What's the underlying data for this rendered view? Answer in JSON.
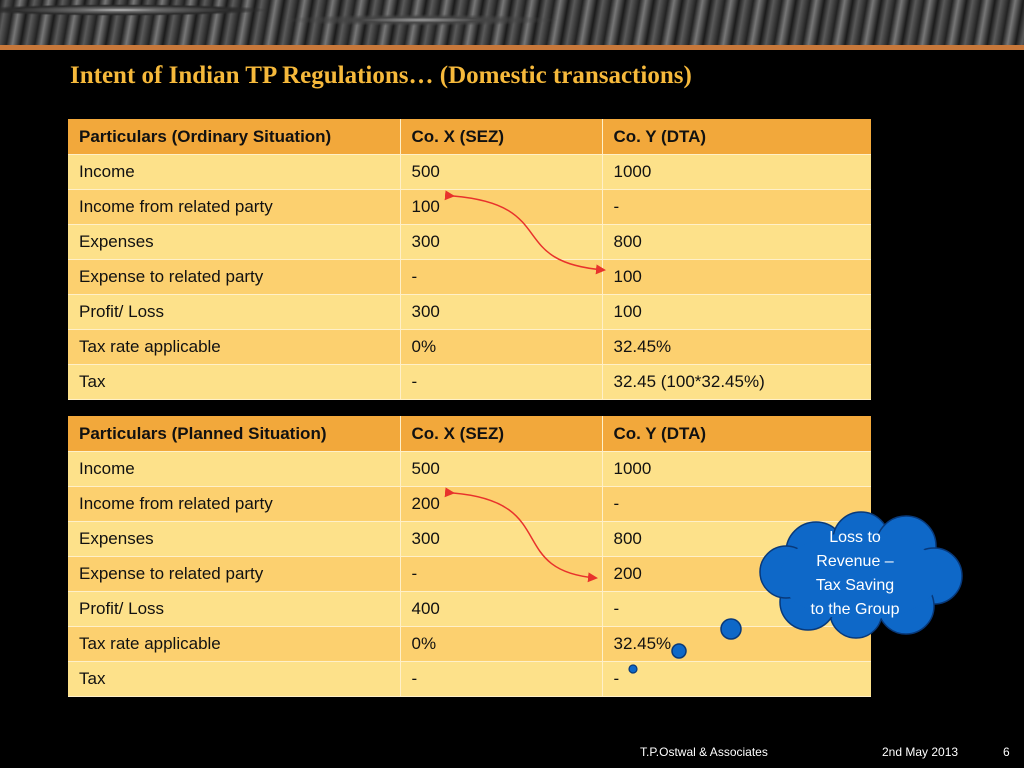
{
  "slide": {
    "title": "Intent of Indian TP Regulations… (Domestic transactions)",
    "accent_color": "#f6b93b",
    "rule_color": "#c8783a"
  },
  "ordinary_table": {
    "headers": [
      "Particulars (Ordinary Situation)",
      "Co. X (SEZ)",
      "Co. Y  (DTA)"
    ],
    "rows": [
      [
        "Income",
        "500",
        "1000"
      ],
      [
        "Income from related party",
        "100",
        "-"
      ],
      [
        "Expenses",
        "300",
        "800"
      ],
      [
        "Expense to related party",
        "-",
        "100"
      ],
      [
        "Profit/ Loss",
        "300",
        "100"
      ],
      [
        "Tax rate applicable",
        "0%",
        "32.45%"
      ],
      [
        "Tax",
        "-",
        "32.45 (100*32.45%)"
      ]
    ]
  },
  "planned_table": {
    "headers": [
      "Particulars (Planned Situation)",
      "Co. X (SEZ)",
      "Co. Y  (DTA)"
    ],
    "rows": [
      [
        "Income",
        "500",
        "1000"
      ],
      [
        "Income from related party",
        "200",
        "-"
      ],
      [
        "Expenses",
        "300",
        "800"
      ],
      [
        "Expense to related party",
        "-",
        "200"
      ],
      [
        "Profit/ Loss",
        "400",
        "-"
      ],
      [
        "Tax rate applicable",
        "0%",
        "32.45%"
      ],
      [
        "Tax",
        "-",
        "-"
      ]
    ]
  },
  "callout": {
    "text_lines": [
      "Loss to",
      "Revenue –",
      "Tax Saving",
      "to the Group"
    ],
    "fill_color": "#0e68c8"
  },
  "footer": {
    "company": "T.P.Ostwal &  Associates",
    "date": "2nd May 2013",
    "page_number": "6"
  }
}
